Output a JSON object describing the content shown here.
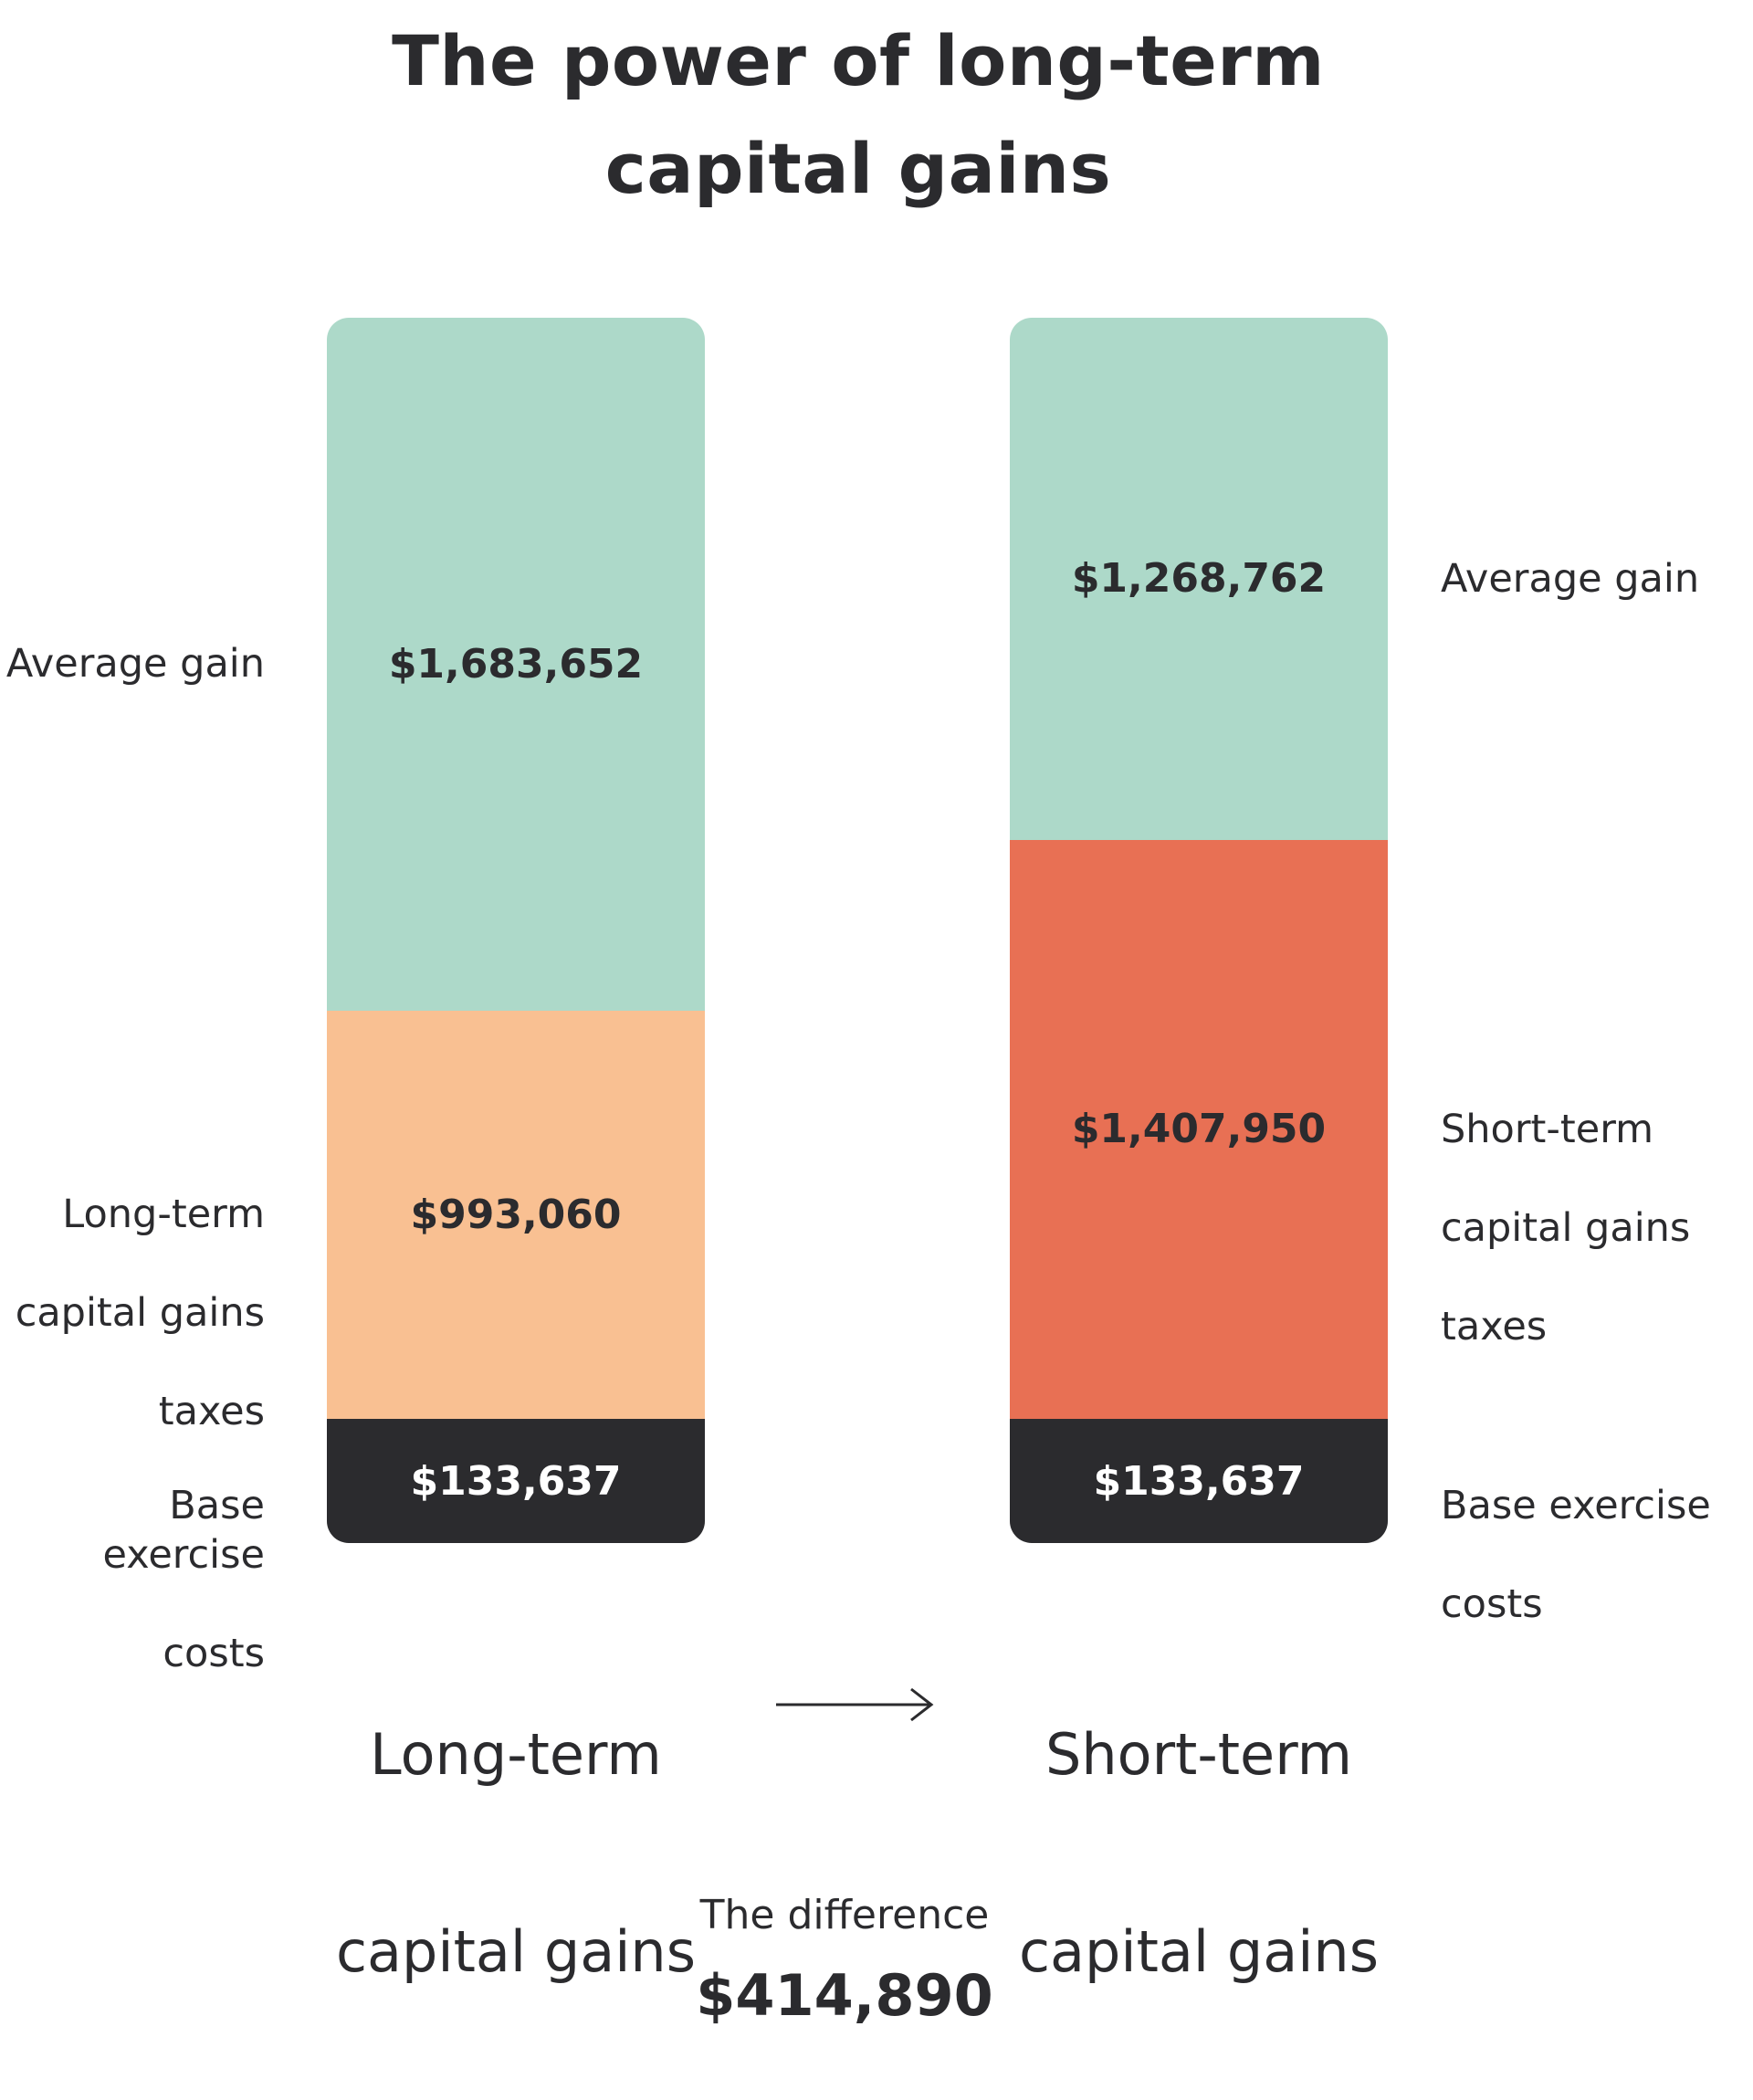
{
  "colors": {
    "average_gain": "#add9c9",
    "long_term_taxes": "#f9c092",
    "short_term_taxes": "#e87054",
    "base_costs": "#2b2b2e",
    "text": "#2b2b2e"
  },
  "chart_data": {
    "type": "bar",
    "stacked": true,
    "title": "The power of long-term capital gains",
    "categories": [
      "Long-term capital gains",
      "Short-term capital gains"
    ],
    "bars": [
      {
        "category": "Long-term capital gains",
        "segments": [
          {
            "label": "Base exercise costs",
            "value": 133637,
            "value_text": "$133,637"
          },
          {
            "label": "Long-term capital gains taxes",
            "value": 993060,
            "value_text": "$993,060"
          },
          {
            "label": "Average gain",
            "value": 1683652,
            "value_text": "$1,683,652"
          }
        ]
      },
      {
        "category": "Short-term capital gains",
        "segments": [
          {
            "label": "Base exercise costs",
            "value": 133637,
            "value_text": "$133,637"
          },
          {
            "label": "Short-term capital gains taxes",
            "value": 1407950,
            "value_text": "$1,407,950"
          },
          {
            "label": "Average gain",
            "value": 1268762,
            "value_text": "$1,268,762"
          }
        ]
      }
    ],
    "difference": {
      "label": "The difference",
      "value": 414890,
      "value_text": "$414,890"
    }
  }
}
